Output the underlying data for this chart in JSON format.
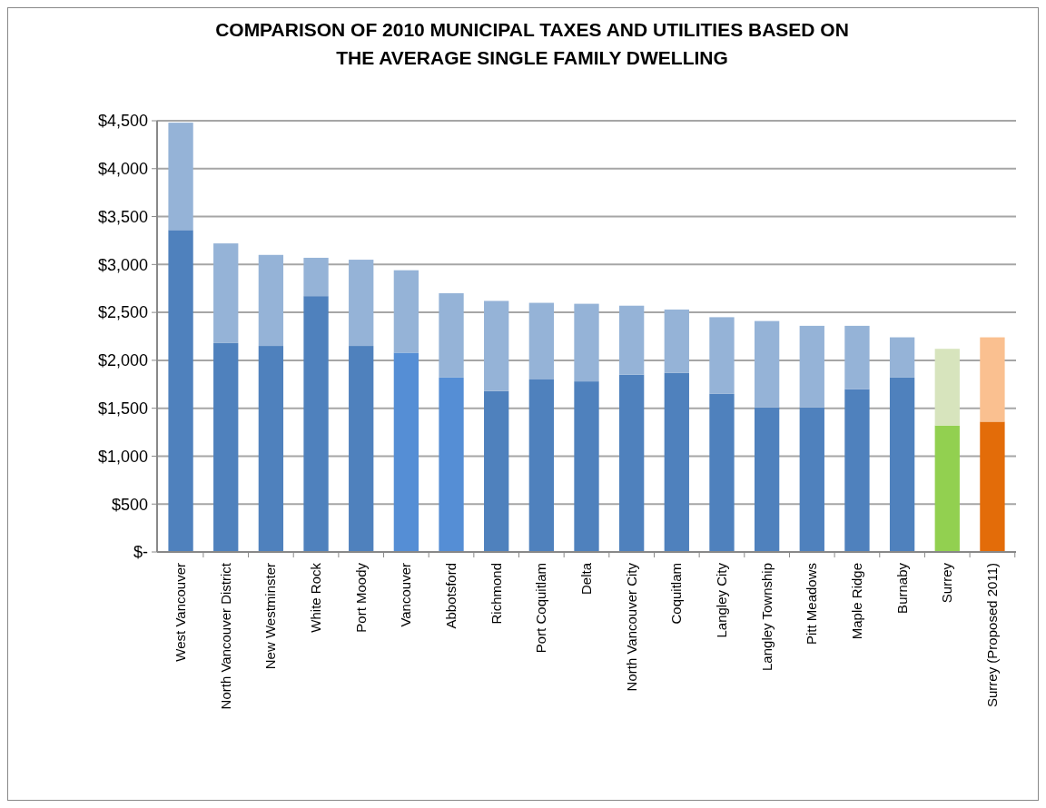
{
  "chart_data": {
    "type": "bar",
    "title": "COMPARISON OF 2010 MUNICIPAL TAXES AND UTILITIES BASED ON THE AVERAGE SINGLE FAMILY DWELLING",
    "stacked": true,
    "categories": [
      "West Vancouver",
      "North Vancouver District",
      "New Westminster",
      "White Rock",
      "Port Moody",
      "Vancouver",
      "Abbotsford",
      "Richmond",
      "Port Coquitlam",
      "Delta",
      "North Vancouver City",
      "Coquitlam",
      "Langley City",
      "Langley Township",
      "Pitt Meadows",
      "Maple Ridge",
      "Burnaby",
      "Surrey",
      "Surrey (Proposed 2011)"
    ],
    "series": [
      {
        "colors": [
          "#4f81bd",
          "#4f81bd",
          "#4f81bd",
          "#4f81bd",
          "#4f81bd",
          "#558ed5",
          "#558ed5",
          "#4f81bd",
          "#4f81bd",
          "#4f81bd",
          "#4f81bd",
          "#4f81bd",
          "#4f81bd",
          "#4f81bd",
          "#4f81bd",
          "#4f81bd",
          "#4f81bd",
          "#92d050",
          "#e36c09"
        ],
        "values": [
          3360,
          2180,
          2150,
          2670,
          2150,
          2080,
          1820,
          1680,
          1800,
          1780,
          1850,
          1870,
          1650,
          1510,
          1510,
          1700,
          1820,
          1320,
          1360
        ]
      },
      {
        "colors": [
          "#95b3d7",
          "#95b3d7",
          "#95b3d7",
          "#95b3d7",
          "#95b3d7",
          "#95b3d7",
          "#95b3d7",
          "#95b3d7",
          "#95b3d7",
          "#95b3d7",
          "#95b3d7",
          "#95b3d7",
          "#95b3d7",
          "#95b3d7",
          "#95b3d7",
          "#95b3d7",
          "#95b3d7",
          "#d7e4bd",
          "#fac090"
        ],
        "values": [
          1120,
          1040,
          950,
          400,
          900,
          860,
          880,
          940,
          800,
          810,
          720,
          660,
          800,
          900,
          850,
          660,
          420,
          800,
          880
        ]
      }
    ],
    "ylim": [
      0,
      4500
    ],
    "yticks": [
      {
        "value": 0,
        "label": "$-"
      },
      {
        "value": 500,
        "label": "$500"
      },
      {
        "value": 1000,
        "label": "$1,000"
      },
      {
        "value": 1500,
        "label": "$1,500"
      },
      {
        "value": 2000,
        "label": "$2,000"
      },
      {
        "value": 2500,
        "label": "$2,500"
      },
      {
        "value": 3000,
        "label": "$3,000"
      },
      {
        "value": 3500,
        "label": "$3,500"
      },
      {
        "value": 4000,
        "label": "$4,000"
      },
      {
        "value": 4500,
        "label": "$4,500"
      }
    ],
    "grid": "y"
  }
}
